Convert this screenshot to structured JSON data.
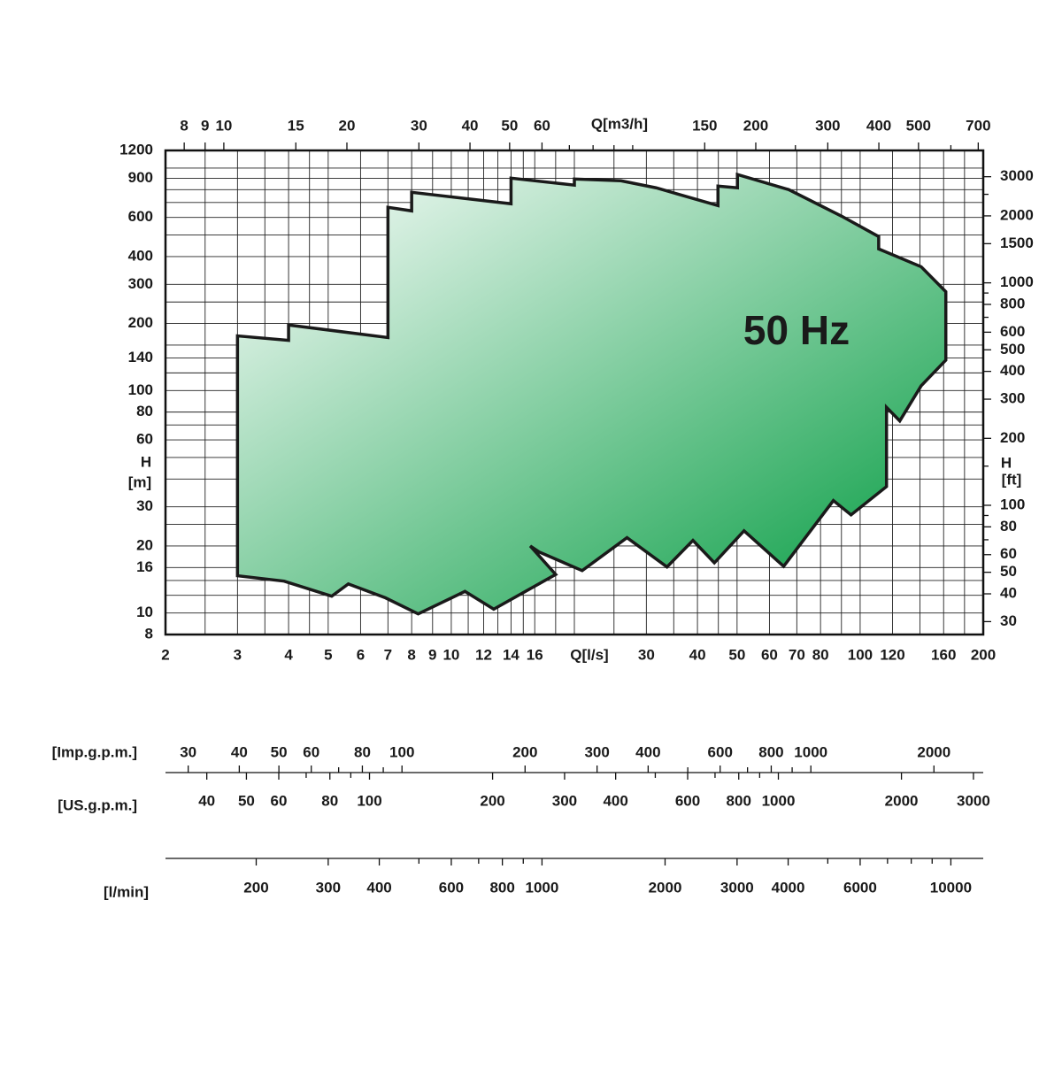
{
  "chart_data": {
    "type": "area",
    "annotation": "50 Hz",
    "colors": [
      "#ffffff",
      "#009a3e"
    ],
    "outline_color": "#1a1a1a",
    "xlog": true,
    "ylog": true,
    "grid": true,
    "x": [
      3.0,
      4.0,
      4.0,
      7.0,
      7.0,
      8.0,
      8.0,
      14,
      14,
      20,
      20,
      26,
      31.7,
      44.9,
      44.9,
      50.1,
      50.1,
      66.9,
      90.2,
      111,
      111,
      141,
      162,
      162,
      141,
      125,
      116,
      116,
      95,
      86,
      65,
      52,
      44,
      39,
      33.7,
      26.9,
      20.9,
      16.4,
      15.6,
      18.0,
      12.7,
      10.8,
      8.3,
      6.9,
      5.6,
      5.1,
      3.9,
      3.0
    ],
    "values": [
      176,
      168,
      197,
      173,
      666,
      642,
      778,
      691,
      901,
      838,
      893,
      877,
      815,
      678,
      830,
      815,
      935,
      800,
      607,
      492,
      433,
      360,
      278,
      137,
      105,
      73,
      84,
      37,
      27.6,
      32,
      16.2,
      23.4,
      16.8,
      21.2,
      16.1,
      21.8,
      15.5,
      18.8,
      20.0,
      14.9,
      10.4,
      12.5,
      9.9,
      11.7,
      13.5,
      11.9,
      13.9,
      14.7
    ],
    "xlabel": "Q[l/s]",
    "xlim": [
      2,
      200
    ],
    "xticks": [
      2,
      3,
      4,
      5,
      6,
      7,
      8,
      9,
      10,
      12,
      14,
      16,
      30,
      40,
      50,
      60,
      70,
      80,
      100,
      120,
      160,
      200
    ],
    "xminor": [
      2.5,
      3.5,
      4.5,
      11,
      13,
      15,
      18,
      20,
      25,
      35,
      45,
      90,
      140,
      180
    ],
    "x2label": "Q[m3/h]",
    "x2lim": [
      7.2,
      720
    ],
    "x2ticks": [
      8,
      9,
      10,
      15,
      20,
      30,
      40,
      50,
      60,
      150,
      200,
      300,
      400,
      500,
      700
    ],
    "x2minor": [
      70,
      80,
      90,
      100,
      250,
      600
    ],
    "ylabel": [
      "H",
      "[m]"
    ],
    "ylim": [
      8,
      1200
    ],
    "yticks": [
      8,
      10,
      16,
      20,
      30,
      60,
      80,
      100,
      140,
      200,
      300,
      400,
      600,
      900,
      1200
    ],
    "yminor": [
      12,
      14,
      25,
      40,
      50,
      70,
      120,
      160,
      250,
      500,
      700,
      800,
      1000
    ],
    "y2label": [
      "H",
      "[ft]"
    ],
    "y2lim": [
      26.25,
      3937
    ],
    "y2ticks": [
      30,
      40,
      50,
      60,
      80,
      100,
      200,
      300,
      400,
      500,
      600,
      800,
      1000,
      1500,
      2000,
      3000
    ],
    "y2minor": [
      70,
      90,
      150,
      700,
      900,
      2500
    ],
    "scales": [
      {
        "label": "[Imp.g.p.m.]",
        "lim": [
          26.4,
          2640
        ],
        "ticks": [
          30,
          40,
          50,
          60,
          80,
          100,
          200,
          300,
          400,
          600,
          800,
          1000,
          2000
        ],
        "minor": [
          70,
          90,
          500,
          700,
          900
        ]
      },
      {
        "label": "[US.g.p.m.]",
        "lim": [
          31.7,
          3170
        ],
        "ticks": [
          40,
          50,
          60,
          80,
          100,
          200,
          300,
          400,
          600,
          800,
          1000,
          2000,
          3000
        ],
        "minor": [
          70,
          90,
          500,
          700,
          900
        ]
      },
      {
        "label": "[l/min]",
        "lim": [
          120,
          12000
        ],
        "ticks": [
          200,
          300,
          400,
          600,
          800,
          1000,
          2000,
          3000,
          4000,
          6000,
          10000
        ],
        "minor": [
          500,
          700,
          900,
          5000,
          7000,
          8000,
          9000
        ]
      }
    ]
  }
}
